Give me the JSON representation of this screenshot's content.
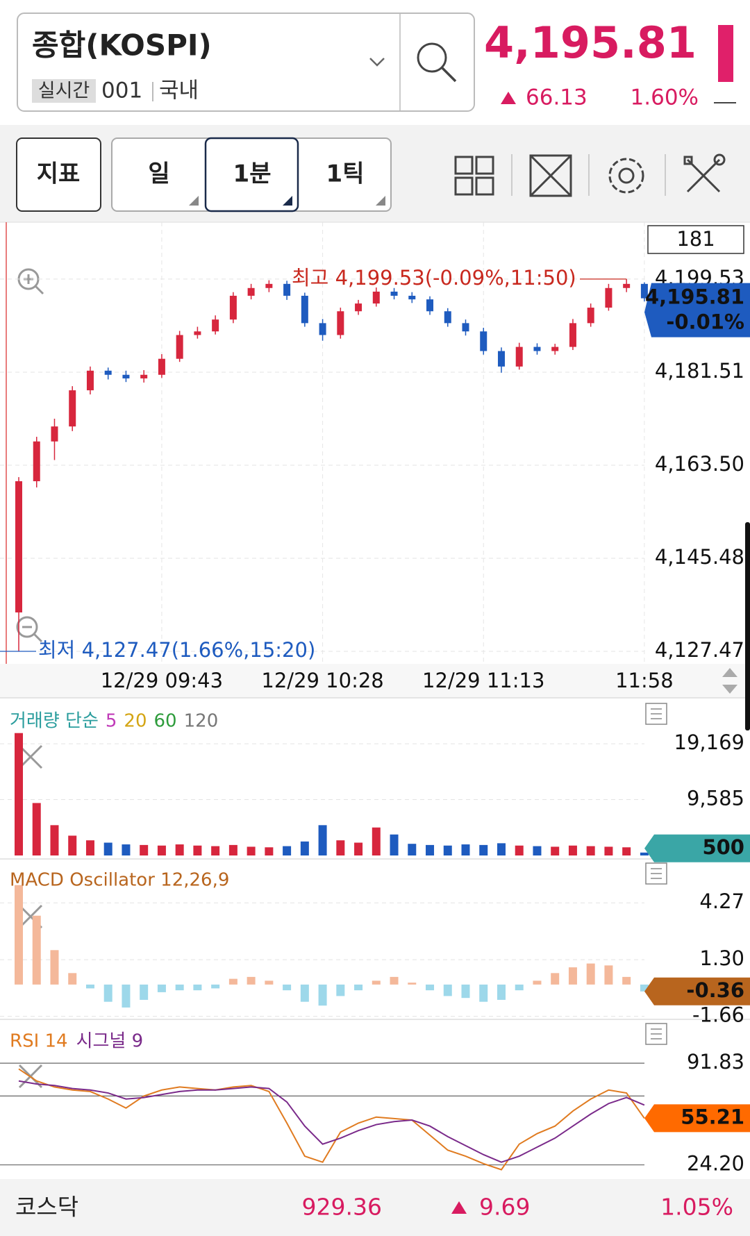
{
  "header": {
    "name": "종합(KOSPI)",
    "badge": "실시간",
    "code": "001",
    "market": "국내",
    "price": "4,195.81",
    "change": "66.13",
    "change_pct": "1.60%"
  },
  "toolbar": {
    "indicator": "지표",
    "periods": [
      "일",
      "1분",
      "1틱"
    ]
  },
  "chart_data": [
    {
      "type": "candlestick",
      "badge": "181",
      "categories": [
        null,
        null,
        null,
        null,
        null,
        null,
        null,
        null,
        "12/29 09:43",
        null,
        null,
        null,
        null,
        null,
        null,
        null,
        null,
        "12/29 10:28",
        null,
        null,
        null,
        null,
        null,
        null,
        null,
        null,
        "12/29 11:13",
        null,
        null,
        null,
        null,
        null,
        null,
        null,
        null,
        "11:58"
      ],
      "open": [
        4135.0,
        4160.4,
        4168.1,
        4171.0,
        4178.0,
        4181.8,
        4181.0,
        4180.3,
        4181.0,
        4184.1,
        4188.7,
        4189.4,
        4191.7,
        4196.3,
        4197.8,
        4198.6,
        4196.3,
        4191.0,
        4188.7,
        4193.3,
        4194.8,
        4197.1,
        4196.3,
        4195.6,
        4193.3,
        4191.0,
        4189.4,
        4185.6,
        4182.6,
        4186.4,
        4185.6,
        4186.4,
        4191.0,
        4194.0,
        4197.8,
        4198.6
      ],
      "high": [
        4161.2,
        4169.0,
        4172.5,
        4178.8,
        4182.6,
        4182.4,
        4181.8,
        4181.9,
        4185.0,
        4189.5,
        4190.3,
        4192.5,
        4197.0,
        4198.6,
        4199.3,
        4199.2,
        4196.9,
        4191.8,
        4194.0,
        4195.5,
        4197.9,
        4197.8,
        4197.0,
        4196.2,
        4193.9,
        4191.7,
        4190.1,
        4186.3,
        4187.2,
        4187.1,
        4187.0,
        4191.8,
        4194.8,
        4198.6,
        4199.53,
        4198.9
      ],
      "low": [
        4127.47,
        4159.2,
        4164.5,
        4170.1,
        4177.2,
        4180.1,
        4179.6,
        4179.5,
        4180.4,
        4183.5,
        4188.0,
        4188.8,
        4191.0,
        4195.6,
        4197.0,
        4195.5,
        4190.3,
        4187.6,
        4188.0,
        4192.6,
        4194.2,
        4195.6,
        4194.9,
        4192.6,
        4190.3,
        4188.6,
        4184.9,
        4181.4,
        4182.0,
        4184.9,
        4184.9,
        4185.8,
        4190.3,
        4193.4,
        4197.0,
        4195.2
      ],
      "close": [
        4160.4,
        4168.1,
        4171.0,
        4178.0,
        4181.8,
        4181.0,
        4180.3,
        4181.0,
        4184.1,
        4188.7,
        4189.4,
        4191.7,
        4196.3,
        4197.8,
        4198.6,
        4196.3,
        4191.0,
        4188.7,
        4193.3,
        4194.8,
        4197.1,
        4196.3,
        4195.6,
        4193.3,
        4191.0,
        4189.4,
        4185.6,
        4182.6,
        4186.4,
        4185.6,
        4186.4,
        4191.0,
        4194.0,
        4197.8,
        4198.6,
        4195.81
      ],
      "up_color": "#d7263d",
      "down_color": "#1e5bbf",
      "ylim": [
        4125.05,
        4210.54
      ],
      "yticks": [
        {
          "value": 4127.47,
          "label": "4,127.47"
        },
        {
          "value": 4145.48,
          "label": "4,145.48"
        },
        {
          "value": 4163.5,
          "label": "4,163.50"
        },
        {
          "value": 4181.51,
          "label": "4,181.51"
        },
        {
          "value": 4199.53,
          "label": "4,199.53"
        }
      ],
      "high_note": "최고 4,199.53(-0.09%,11:50)",
      "low_note": "최저 4,127.47(1.66%,15:20)",
      "tag_change": "-0.01%",
      "tag_color": "#1e5bbf"
    },
    {
      "type": "volume",
      "title": "거래량 단순",
      "legend": [
        {
          "name": "5",
          "color": "#c03ab8"
        },
        {
          "name": "20",
          "color": "#d4a514"
        },
        {
          "name": "60",
          "color": "#2e9c3c"
        },
        {
          "name": "120",
          "color": "#777777"
        }
      ],
      "title_color": "#2a9d9d",
      "values": [
        21000,
        9000,
        5200,
        3400,
        2600,
        2200,
        1900,
        1800,
        1700,
        1900,
        1700,
        1600,
        1800,
        1500,
        1400,
        1600,
        2400,
        5200,
        2600,
        2200,
        4800,
        3600,
        2000,
        1800,
        1700,
        1900,
        1800,
        2100,
        1700,
        1600,
        1500,
        1700,
        1600,
        1500,
        1400,
        500
      ],
      "ylim": [
        0,
        26324
      ],
      "yticks": [
        {
          "value": 9585,
          "label": "9,585"
        },
        {
          "value": 19169,
          "label": "19,169"
        }
      ],
      "tag_color": "#3aa6a6"
    },
    {
      "type": "macd",
      "title": "MACD Oscillator 12,26,9",
      "title_color": "#b8651e",
      "values": [
        5.2,
        3.6,
        1.8,
        0.6,
        -0.2,
        -0.9,
        -1.2,
        -0.8,
        -0.4,
        -0.3,
        -0.3,
        -0.2,
        0.3,
        0.4,
        0.2,
        -0.3,
        -0.9,
        -1.1,
        -0.6,
        -0.3,
        0.2,
        0.4,
        0.1,
        -0.3,
        -0.6,
        -0.7,
        -0.9,
        -0.8,
        -0.3,
        0.2,
        0.6,
        0.9,
        1.1,
        1.0,
        0.4,
        -0.36
      ],
      "pos_color": "#f4b89a",
      "neg_color": "#9dd8ea",
      "ylim": [
        -1.71,
        6.13
      ],
      "yticks": [
        -1.66,
        {
          "value": 1.3,
          "label": "1.30"
        },
        4.27
      ],
      "tag_color": "#b8651e"
    },
    {
      "type": "line",
      "ylim": [
        14.77,
        119.6
      ],
      "yticks": [
        {
          "value": 24.2,
          "label": "24.20"
        },
        91.83
      ],
      "ref_lines": [
        70
      ],
      "series": [
        {
          "name": "RSI 14",
          "color": "#e07b20",
          "values": [
            88,
            80,
            76,
            74,
            73,
            68,
            62,
            70,
            74,
            76,
            75,
            74,
            76,
            77,
            73,
            52,
            30,
            26,
            46,
            52,
            56,
            55,
            54,
            44,
            34,
            30,
            25,
            21,
            38,
            45,
            50,
            60,
            68,
            74,
            72,
            55.21
          ]
        },
        {
          "name": "시그널 9",
          "color": "#7a2a8a",
          "values": [
            80,
            78,
            77,
            75,
            74,
            72,
            68,
            69,
            71,
            73,
            74,
            74,
            75,
            76,
            75,
            66,
            50,
            38,
            42,
            47,
            51,
            53,
            54,
            50,
            43,
            37,
            31,
            26,
            30,
            36,
            42,
            50,
            58,
            65,
            69,
            64
          ]
        }
      ],
      "tag_color": "#ff6a00"
    }
  ],
  "footer": {
    "name": "코스닥",
    "price": "929.36",
    "change": "9.69",
    "change_pct": "1.05%"
  }
}
